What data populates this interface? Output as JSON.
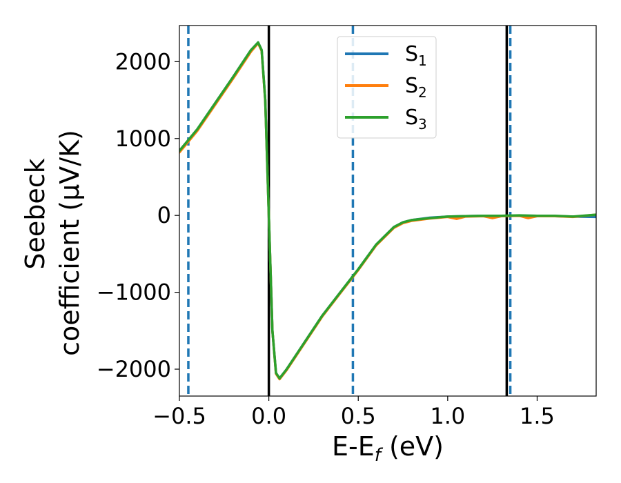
{
  "chart_data": {
    "type": "line",
    "title": "",
    "xlabel": {
      "base": "E-E",
      "sub": "f",
      "tail": " (eV)"
    },
    "ylabel": {
      "line1": "Seebeck",
      "line2": "coefficient  (μV/K)"
    },
    "xlim": [
      -0.5,
      1.83
    ],
    "ylim": [
      -2350,
      2470
    ],
    "xticks": [
      -0.5,
      0.0,
      0.5,
      1.0,
      1.5
    ],
    "xtick_labels": [
      "−0.5",
      "0.0",
      "0.5",
      "1.0",
      "1.5"
    ],
    "yticks": [
      2000,
      1000,
      0,
      -1000,
      -2000
    ],
    "ytick_labels": [
      "2000",
      "1000",
      "0",
      "−1000",
      "−2000"
    ],
    "legend": {
      "position": "top-center",
      "entries": [
        {
          "base": "S",
          "sub": "1",
          "color": "#1f77b4"
        },
        {
          "base": "S",
          "sub": "2",
          "color": "#ff7f0e"
        },
        {
          "base": "S",
          "sub": "3",
          "color": "#2ca02c"
        }
      ]
    },
    "vlines": [
      {
        "x": -0.45,
        "style": "dashed",
        "color": "#1f77b4"
      },
      {
        "x": 0.0,
        "style": "solid",
        "color": "#000000"
      },
      {
        "x": 0.47,
        "style": "dashed",
        "color": "#1f77b4"
      },
      {
        "x": 1.33,
        "style": "solid",
        "color": "#000000"
      },
      {
        "x": 1.35,
        "style": "dashed",
        "color": "#1f77b4"
      }
    ],
    "series": [
      {
        "name": "S1",
        "color": "#1f77b4",
        "x": [
          -0.5,
          -0.4,
          -0.3,
          -0.2,
          -0.1,
          -0.06,
          -0.04,
          -0.02,
          0.0,
          0.02,
          0.04,
          0.06,
          0.1,
          0.2,
          0.3,
          0.4,
          0.5,
          0.6,
          0.7,
          0.75,
          0.8,
          0.9,
          1.0,
          1.1,
          1.2,
          1.3,
          1.4,
          1.5,
          1.6,
          1.7,
          1.83
        ],
        "y": [
          840,
          1120,
          1460,
          1800,
          2150,
          2250,
          2150,
          1500,
          0,
          -1500,
          -2050,
          -2120,
          -2000,
          -1650,
          -1300,
          -1000,
          -700,
          -380,
          -150,
          -90,
          -60,
          -30,
          -15,
          -10,
          -5,
          -5,
          -3,
          -5,
          -10,
          -15,
          -20
        ]
      },
      {
        "name": "S2",
        "color": "#ff7f0e",
        "x": [
          -0.5,
          -0.4,
          -0.3,
          -0.2,
          -0.1,
          -0.06,
          -0.04,
          -0.02,
          0.0,
          0.02,
          0.04,
          0.06,
          0.1,
          0.2,
          0.3,
          0.4,
          0.5,
          0.6,
          0.7,
          0.75,
          0.8,
          0.9,
          1.0,
          1.05,
          1.1,
          1.2,
          1.25,
          1.3,
          1.4,
          1.45,
          1.5,
          1.6,
          1.7,
          1.83
        ],
        "y": [
          820,
          1100,
          1440,
          1780,
          2130,
          2240,
          2140,
          1490,
          0,
          -1500,
          -2060,
          -2130,
          -2010,
          -1660,
          -1310,
          -1010,
          -710,
          -390,
          -160,
          -100,
          -70,
          -40,
          -20,
          -45,
          -15,
          -10,
          -35,
          -10,
          -5,
          -35,
          -10,
          -10,
          -20,
          10
        ]
      },
      {
        "name": "S3",
        "color": "#2ca02c",
        "x": [
          -0.5,
          -0.4,
          -0.3,
          -0.2,
          -0.1,
          -0.06,
          -0.04,
          -0.02,
          0.0,
          0.02,
          0.04,
          0.06,
          0.1,
          0.2,
          0.3,
          0.4,
          0.5,
          0.6,
          0.7,
          0.75,
          0.8,
          0.9,
          1.0,
          1.1,
          1.2,
          1.3,
          1.4,
          1.5,
          1.6,
          1.7,
          1.83
        ],
        "y": [
          840,
          1120,
          1460,
          1800,
          2150,
          2250,
          2150,
          1500,
          0,
          -1500,
          -2050,
          -2120,
          -2000,
          -1650,
          -1300,
          -1000,
          -700,
          -380,
          -150,
          -90,
          -60,
          -35,
          -15,
          -10,
          -5,
          -5,
          0,
          -5,
          -5,
          -15,
          10
        ]
      }
    ]
  }
}
